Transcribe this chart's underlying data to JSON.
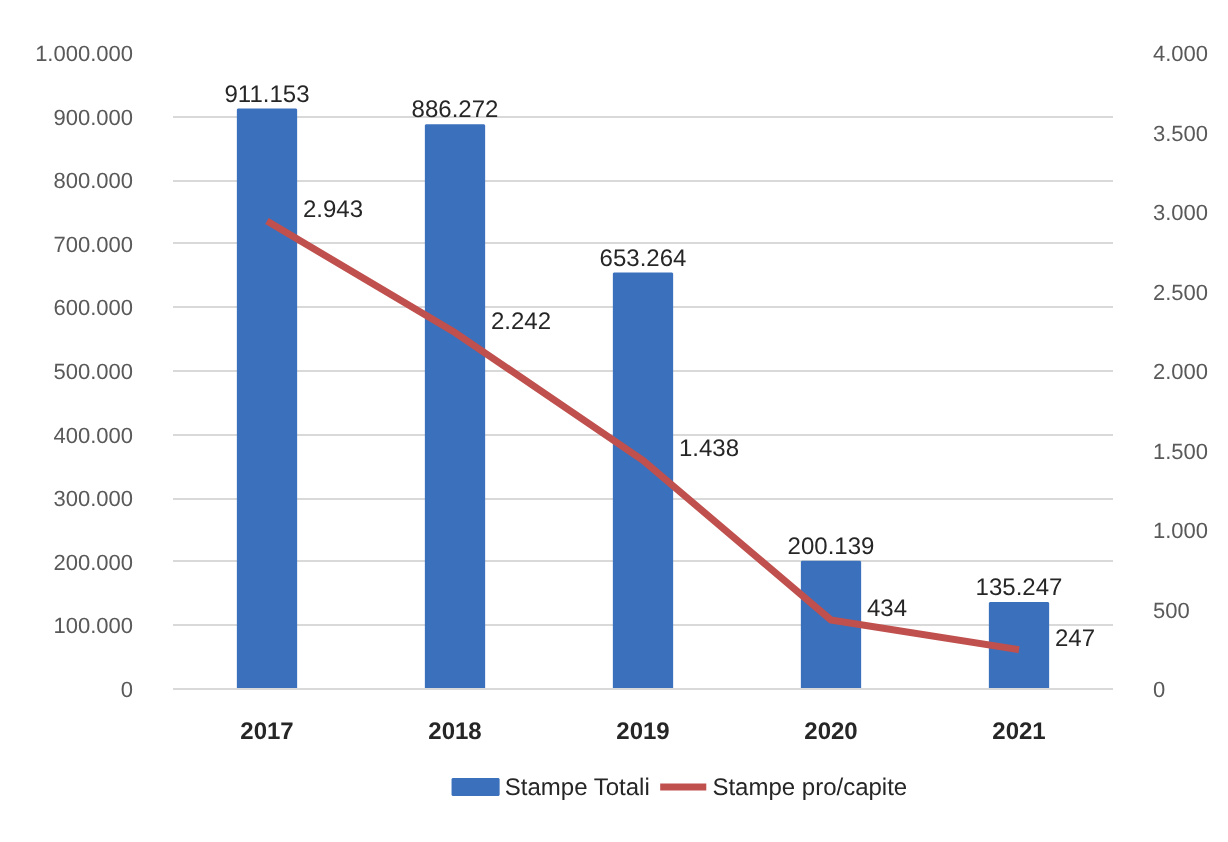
{
  "chart_data": {
    "type": "bar",
    "categories": [
      "2017",
      "2018",
      "2019",
      "2020",
      "2021"
    ],
    "series": [
      {
        "name": "Stampe Totali",
        "color": "#3b70bc",
        "values": [
          911153,
          886272,
          653264,
          200139,
          135247
        ],
        "value_labels": [
          "911.153",
          "886.272",
          "653.264",
          "200.139",
          "135.247"
        ]
      },
      {
        "name": "Stampe pro/capite",
        "type": "line",
        "axis": "y2",
        "color": "#c0504d",
        "values": [
          2943,
          2242,
          1438,
          434,
          247
        ],
        "value_labels": [
          "2.943",
          "2.242",
          "1.438",
          "434",
          "247"
        ]
      }
    ],
    "ylim": [
      0,
      1000000
    ],
    "yticks": [
      0,
      {
        "value": 100000,
        "label": "100.000"
      },
      {
        "value": 200000,
        "label": "200.000"
      },
      {
        "value": 300000,
        "label": "300.000"
      },
      {
        "value": 400000,
        "label": "400.000"
      },
      {
        "value": 500000,
        "label": "500.000"
      },
      {
        "value": 600000,
        "label": "600.000"
      },
      {
        "value": 700000,
        "label": "700.000"
      },
      {
        "value": 800000,
        "label": "800.000"
      },
      {
        "value": 900000,
        "label": "900.000"
      },
      {
        "value": 1000000,
        "label": "1.000.000"
      }
    ],
    "y2lim": [
      0,
      4000
    ],
    "y2ticks": [
      0,
      500,
      {
        "value": 1000,
        "label": "1.000"
      },
      {
        "value": 1500,
        "label": "1.500"
      },
      {
        "value": 2000,
        "label": "2.000"
      },
      {
        "value": 2500,
        "label": "2.500"
      },
      {
        "value": 3000,
        "label": "3.000"
      },
      {
        "value": 3500,
        "label": "3.500"
      },
      {
        "value": 4000,
        "label": "4.000"
      }
    ],
    "grid": "y",
    "legend": "bottom",
    "marker": "none",
    "line_style": "solid"
  }
}
